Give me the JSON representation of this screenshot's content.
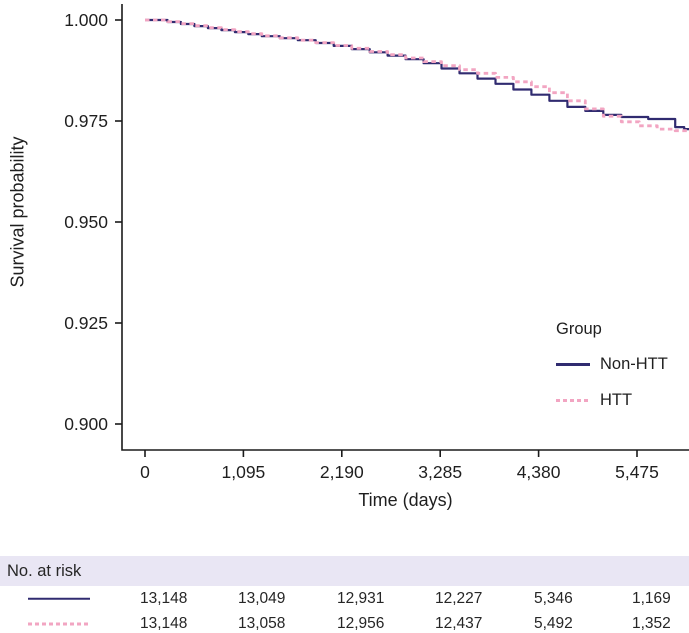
{
  "chart_data": {
    "type": "line",
    "subtype": "kaplan-meier-step",
    "title": "",
    "xlabel": "Time (days)",
    "ylabel": "Survival probability",
    "xlim": [
      0,
      6100
    ],
    "ylim": [
      0.8936,
      1.004
    ],
    "grid": false,
    "x_ticks": [
      0,
      1095,
      2190,
      3285,
      4380,
      5475
    ],
    "x_tick_labels": [
      "0",
      "1,095",
      "2,190",
      "3,285",
      "4,380",
      "5,475"
    ],
    "y_ticks": [
      1.0,
      0.975,
      0.95,
      0.925,
      0.9
    ],
    "y_tick_labels": [
      "1.000",
      "0.975",
      "0.950",
      "0.925",
      "0.900"
    ],
    "legend": {
      "title": "Group",
      "position": "inside-bottom-right"
    },
    "series": [
      {
        "name": "Non-HTT",
        "color": "#302b70",
        "line_style": "solid",
        "points": [
          [
            0,
            1.0
          ],
          [
            150,
            1.0
          ],
          [
            250,
            0.9995
          ],
          [
            400,
            0.999
          ],
          [
            550,
            0.9985
          ],
          [
            700,
            0.998
          ],
          [
            850,
            0.9975
          ],
          [
            1000,
            0.997
          ],
          [
            1150,
            0.9965
          ],
          [
            1300,
            0.996
          ],
          [
            1500,
            0.9955
          ],
          [
            1700,
            0.995
          ],
          [
            1900,
            0.9943
          ],
          [
            2100,
            0.9936
          ],
          [
            2300,
            0.9928
          ],
          [
            2500,
            0.992
          ],
          [
            2700,
            0.9912
          ],
          [
            2900,
            0.9903
          ],
          [
            3100,
            0.9893
          ],
          [
            3300,
            0.988
          ],
          [
            3500,
            0.9868
          ],
          [
            3700,
            0.9855
          ],
          [
            3900,
            0.9842
          ],
          [
            4100,
            0.9828
          ],
          [
            4300,
            0.9815
          ],
          [
            4500,
            0.98
          ],
          [
            4700,
            0.9785
          ],
          [
            4900,
            0.9775
          ],
          [
            5100,
            0.9765
          ],
          [
            5300,
            0.976
          ],
          [
            5600,
            0.9755
          ],
          [
            5900,
            0.9735
          ],
          [
            6000,
            0.973
          ],
          [
            6100,
            0.973
          ]
        ]
      },
      {
        "name": "HTT",
        "color": "#f2a5c2",
        "line_style": "dashed",
        "points": [
          [
            0,
            1.0
          ],
          [
            150,
            1.0
          ],
          [
            250,
            0.9996
          ],
          [
            400,
            0.9991
          ],
          [
            550,
            0.9986
          ],
          [
            700,
            0.9981
          ],
          [
            850,
            0.9976
          ],
          [
            1000,
            0.9971
          ],
          [
            1150,
            0.9966
          ],
          [
            1300,
            0.9961
          ],
          [
            1500,
            0.9956
          ],
          [
            1700,
            0.995
          ],
          [
            1900,
            0.9944
          ],
          [
            2100,
            0.9937
          ],
          [
            2300,
            0.993
          ],
          [
            2500,
            0.9922
          ],
          [
            2700,
            0.9914
          ],
          [
            2900,
            0.9906
          ],
          [
            3100,
            0.9897
          ],
          [
            3300,
            0.9887
          ],
          [
            3500,
            0.9877
          ],
          [
            3700,
            0.9868
          ],
          [
            3900,
            0.9858
          ],
          [
            4100,
            0.9847
          ],
          [
            4300,
            0.9835
          ],
          [
            4500,
            0.982
          ],
          [
            4700,
            0.98
          ],
          [
            4900,
            0.978
          ],
          [
            5100,
            0.9762
          ],
          [
            5300,
            0.9748
          ],
          [
            5500,
            0.9738
          ],
          [
            5700,
            0.973
          ],
          [
            5900,
            0.9726
          ],
          [
            6100,
            0.9726
          ]
        ]
      }
    ]
  },
  "risk_table": {
    "header": "No. at risk",
    "rows": [
      {
        "group": "Non-HTT",
        "marker": "solid-line",
        "counts": [
          "13,148",
          "13,049",
          "12,931",
          "12,227",
          "5,346",
          "1,169"
        ]
      },
      {
        "group": "HTT",
        "marker": "dashed-line",
        "counts": [
          "13,148",
          "13,058",
          "12,956",
          "12,437",
          "5,492",
          "1,352"
        ]
      }
    ]
  },
  "colors": {
    "non_htt": "#302b70",
    "htt": "#f2a5c2",
    "risk_header_bg": "#e9e6f4",
    "axis": "#1a1a1a",
    "text": "#1f1f1f"
  }
}
